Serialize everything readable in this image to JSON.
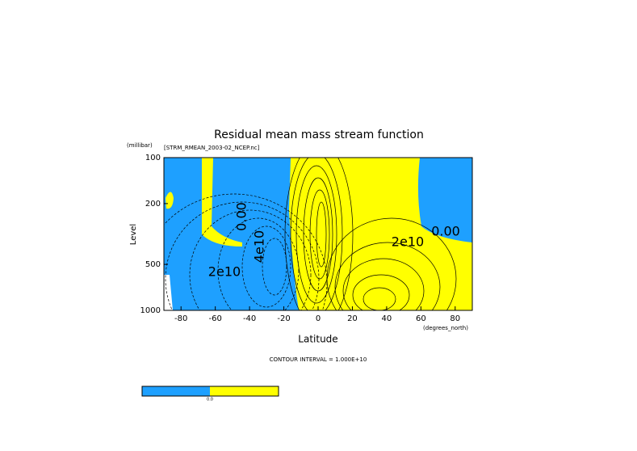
{
  "chart_data": {
    "type": "contour",
    "title": "Residual mean mass stream function",
    "subtitle": "[STRM_RMEAN_2003-02_NCEP.nc]",
    "x_label": "Latitude",
    "x_units": "(degrees_north)",
    "y_label": "Level",
    "y_units": "(millibar)",
    "xlim": [
      -90,
      90
    ],
    "xticks": [
      -80,
      -60,
      -40,
      -20,
      0,
      20,
      40,
      60,
      80
    ],
    "ylim": [
      1000,
      100
    ],
    "yticks": [
      100,
      200,
      500,
      1000
    ],
    "ylog": true,
    "colors": {
      "negative": "#1ea0ff",
      "positive": "#ffff00"
    },
    "annotations": [
      "0.00",
      "2e10",
      "4e10",
      "2e10",
      "0.00"
    ],
    "footer": "CONTOUR INTERVAL = 1.000E+10",
    "colorbar_label": "0.0"
  }
}
